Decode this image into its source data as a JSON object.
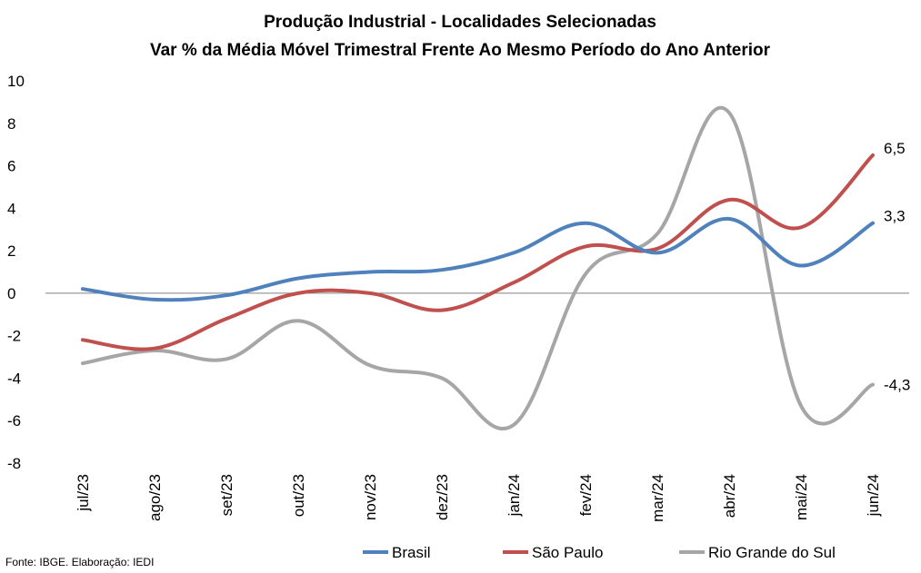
{
  "chart_data": {
    "type": "line",
    "title": "Produção Industrial - Localidades Selecionadas",
    "subtitle": "Var % da Média Móvel Trimestral Frente Ao Mesmo Período do Ano Anterior",
    "categories": [
      "jul/23",
      "ago/23",
      "set/23",
      "out/23",
      "nov/23",
      "dez/23",
      "jan/24",
      "fev/24",
      "mar/24",
      "abr/24",
      "mai/24",
      "jun/24"
    ],
    "ylim": [
      -8,
      10
    ],
    "yticks": [
      "-8",
      "-6",
      "-4",
      "-2",
      "0",
      "2",
      "4",
      "6",
      "8",
      "10"
    ],
    "zero_line": true,
    "grid": false,
    "legend_position": "bottom",
    "series": [
      {
        "name": "Brasil",
        "color": "#4F81BD",
        "values": [
          0.2,
          -0.3,
          -0.1,
          0.7,
          1.0,
          1.1,
          1.9,
          3.3,
          1.9,
          3.5,
          1.3,
          3.3
        ]
      },
      {
        "name": "São Paulo",
        "color": "#C0504D",
        "values": [
          -2.2,
          -2.6,
          -1.2,
          0.0,
          0.0,
          -0.8,
          0.5,
          2.2,
          2.1,
          4.4,
          3.1,
          6.5
        ]
      },
      {
        "name": "Rio Grande do Sul",
        "color": "#A6A6A6",
        "values": [
          -3.3,
          -2.7,
          -3.1,
          -1.3,
          -3.4,
          -4.0,
          -6.2,
          0.9,
          2.8,
          8.5,
          -5.3,
          -4.3
        ]
      }
    ],
    "data_labels": [
      "3,3",
      "6,5",
      "-4,3"
    ],
    "source": "Fonte: IBGE. Elaboração: IEDI"
  }
}
